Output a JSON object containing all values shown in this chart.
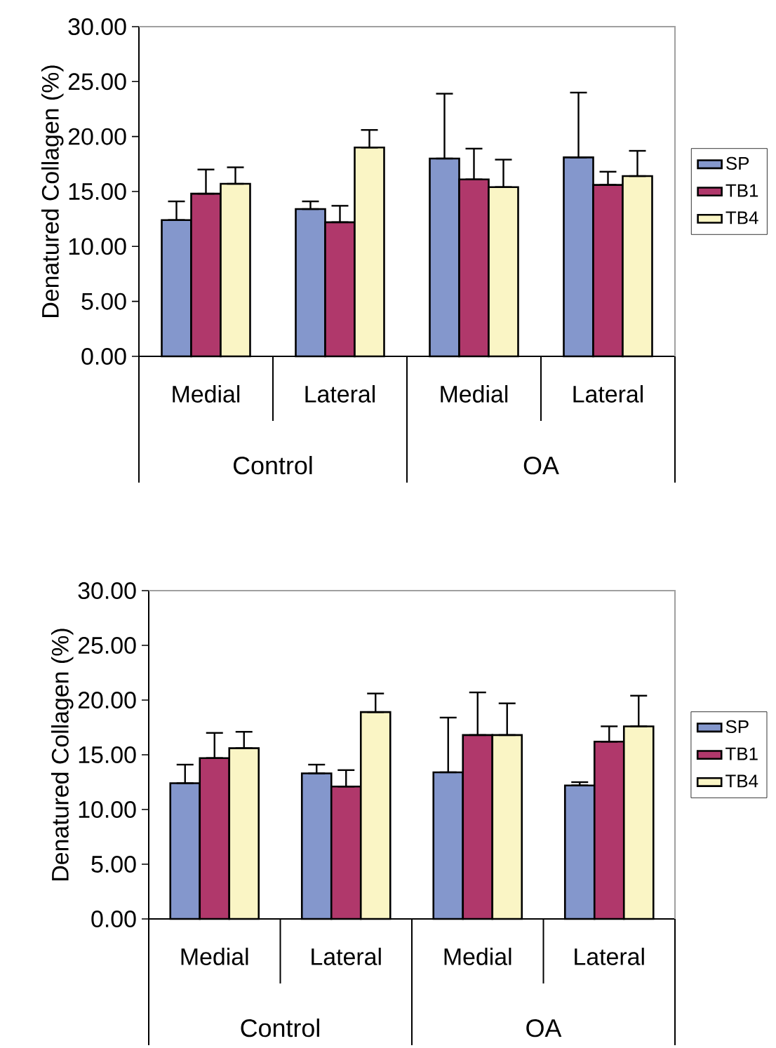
{
  "chart_data": [
    {
      "type": "bar",
      "ylabel": "Denatured Collagen (%)",
      "categories": [
        "Medial",
        "Lateral",
        "Medial",
        "Lateral"
      ],
      "annotations": [
        "Control",
        "OA"
      ],
      "ylim": [
        0,
        30
      ],
      "yticks": [
        {
          "value": 0,
          "label": "0.00"
        },
        {
          "value": 5,
          "label": "5.00"
        },
        {
          "value": 10,
          "label": "10.00"
        },
        {
          "value": 15,
          "label": "15.00"
        },
        {
          "value": 20,
          "label": "20.00"
        },
        {
          "value": 25,
          "label": "25.00"
        },
        {
          "value": 30,
          "label": "30.00"
        }
      ],
      "legend": "right",
      "series": [
        {
          "name": "SP",
          "color": "#8497cc",
          "values": [
            12.4,
            13.4,
            18.0,
            18.1
          ],
          "errors": [
            [
              12.4,
              14.1
            ],
            [
              13.4,
              14.1
            ],
            [
              18.0,
              23.9
            ],
            [
              18.1,
              24.0
            ]
          ]
        },
        {
          "name": "TB1",
          "color": "#b0386b",
          "values": [
            14.8,
            12.2,
            16.1,
            15.6
          ],
          "errors": [
            [
              14.8,
              17.0
            ],
            [
              12.2,
              13.7
            ],
            [
              16.1,
              18.9
            ],
            [
              15.6,
              16.8
            ]
          ]
        },
        {
          "name": "TB4",
          "color": "#faf5c5",
          "values": [
            15.7,
            19.0,
            15.4,
            16.4
          ],
          "errors": [
            [
              15.7,
              17.2
            ],
            [
              19.0,
              20.6
            ],
            [
              15.4,
              17.9
            ],
            [
              16.4,
              18.7
            ]
          ]
        }
      ]
    },
    {
      "type": "bar",
      "ylabel": "Denatured Collagen (%)",
      "categories": [
        "Medial",
        "Lateral",
        "Medial",
        "Lateral"
      ],
      "annotations": [
        "Control",
        "OA"
      ],
      "ylim": [
        0,
        30
      ],
      "yticks": [
        {
          "value": 0,
          "label": "0.00"
        },
        {
          "value": 5,
          "label": "5.00"
        },
        {
          "value": 10,
          "label": "10.00"
        },
        {
          "value": 15,
          "label": "15.00"
        },
        {
          "value": 20,
          "label": "20.00"
        },
        {
          "value": 25,
          "label": "25.00"
        },
        {
          "value": 30,
          "label": "30.00"
        }
      ],
      "legend": "right",
      "series": [
        {
          "name": "SP",
          "color": "#8497cc",
          "values": [
            12.4,
            13.3,
            13.4,
            12.2
          ],
          "errors": [
            [
              12.4,
              14.1
            ],
            [
              13.3,
              14.1
            ],
            [
              13.4,
              18.4
            ],
            [
              12.2,
              12.5
            ]
          ]
        },
        {
          "name": "TB1",
          "color": "#b0386b",
          "values": [
            14.7,
            12.1,
            16.8,
            16.2
          ],
          "errors": [
            [
              14.7,
              17.0
            ],
            [
              12.1,
              13.6
            ],
            [
              16.8,
              20.7
            ],
            [
              16.2,
              17.6
            ]
          ]
        },
        {
          "name": "TB4",
          "color": "#faf5c5",
          "values": [
            15.6,
            18.9,
            16.8,
            17.6
          ],
          "errors": [
            [
              15.6,
              17.1
            ],
            [
              18.9,
              20.6
            ],
            [
              16.8,
              19.7
            ],
            [
              17.6,
              20.4
            ]
          ]
        }
      ]
    }
  ]
}
